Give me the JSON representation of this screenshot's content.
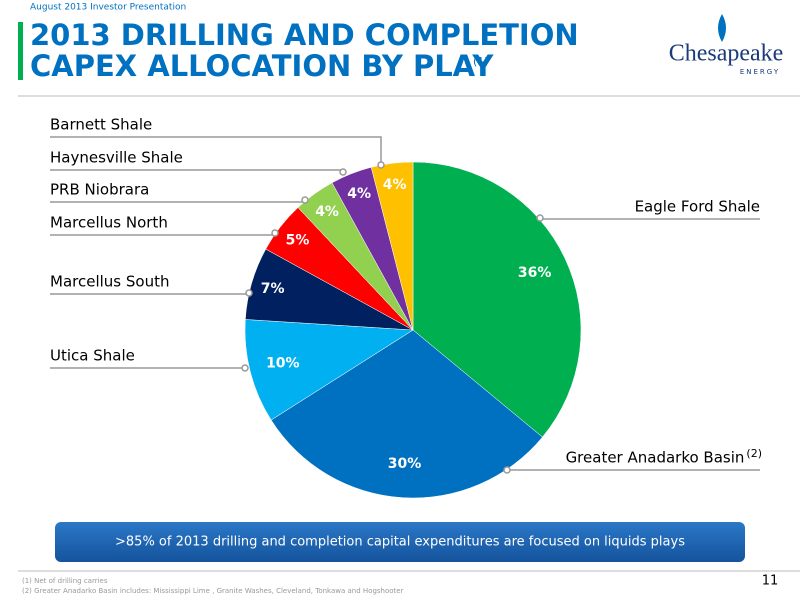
{
  "header": "August 2013 Investor Presentation",
  "logo": {
    "name": "Chesapeake",
    "sub": "ENERGY"
  },
  "chart_data": {
    "type": "pie",
    "title": [
      "2013 DRILLING AND COMPLETION",
      "CAPEX ALLOCATION BY PLAY"
    ],
    "title_note": "(1)",
    "categories": [
      "Eagle Ford Shale",
      "Greater Anadarko Basin",
      "Utica Shale",
      "Marcellus South",
      "Marcellus North",
      "PRB Niobrara",
      "Haynesville Shale",
      "Barnett Shale"
    ],
    "category_note": {
      "index": 1,
      "text": "(2)"
    },
    "values": [
      36,
      30,
      10,
      7,
      5,
      4,
      4,
      4
    ],
    "value_labels": [
      "36%",
      "30%",
      "10%",
      "7%",
      "5%",
      "4%",
      "4%",
      "4%"
    ],
    "colors": [
      "#00b050",
      "#0070c0",
      "#00b0f0",
      "#002060",
      "#ff0000",
      "#92d050",
      "#7030a0",
      "#ffc000"
    ]
  },
  "banner": ">85% of 2013 drilling and completion capital expenditures are focused on liquids plays",
  "footnotes": [
    "(1) Net of drilling carries",
    "(2) Greater Anadarko Basin includes: Mississippi Lime , Granite Washes, Cleveland, Tonkawa and Hogshooter"
  ],
  "page_number": "11"
}
